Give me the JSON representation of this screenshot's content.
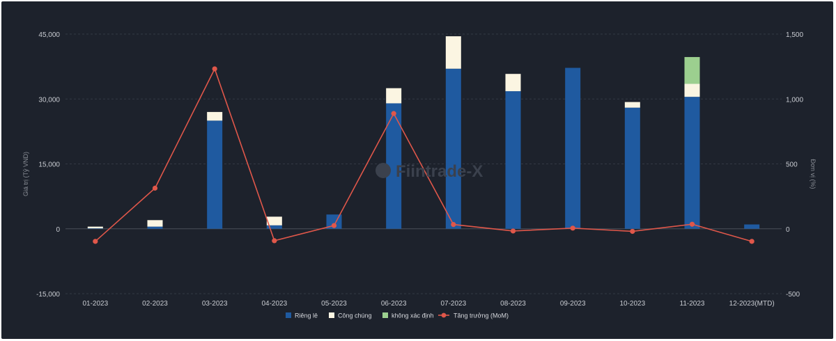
{
  "chart_data": {
    "type": "bar",
    "stacked": true,
    "title": "",
    "watermark": "Fiintrade-X",
    "categories": [
      "01-2023",
      "02-2023",
      "03-2023",
      "04-2023",
      "05-2023",
      "06-2023",
      "07-2023",
      "08-2023",
      "09-2023",
      "10-2023",
      "11-2023",
      "12-2023(MTD)"
    ],
    "ylabel": "Giá trị (Tỷ VND)",
    "y2label": "Đơn vị (%)",
    "ylim": [
      -15000,
      45000
    ],
    "y2lim": [
      -500,
      1500
    ],
    "yticks": [
      "-15,000",
      "0",
      "15,000",
      "30,000",
      "45,000"
    ],
    "y2ticks": [
      "-500",
      "0",
      "500",
      "1,000",
      "1,500"
    ],
    "grid": true,
    "legend_position": "bottom",
    "series": [
      {
        "name": "Riêng lẻ",
        "kind": "bar",
        "axis": "left",
        "color": "#1f5aa0",
        "values": [
          100,
          500,
          25000,
          800,
          3300,
          29000,
          37000,
          31800,
          37200,
          28000,
          30500,
          1000
        ]
      },
      {
        "name": "Công chúng",
        "kind": "bar",
        "axis": "left",
        "color": "#fbf5e2",
        "values": [
          400,
          1500,
          2000,
          2000,
          0,
          3500,
          7500,
          4000,
          0,
          1300,
          3000,
          0
        ]
      },
      {
        "name": "không xác định",
        "kind": "bar",
        "axis": "left",
        "color": "#9ccf8f",
        "values": [
          0,
          0,
          0,
          0,
          0,
          0,
          0,
          0,
          0,
          0,
          6200,
          0
        ]
      },
      {
        "name": "Tăng trưởng (MoM)",
        "kind": "line",
        "axis": "right",
        "color": "#e0574a",
        "values": [
          -97,
          313,
          1232,
          -92,
          25,
          888,
          33,
          -17,
          5,
          -20,
          35,
          -97
        ]
      }
    ]
  }
}
